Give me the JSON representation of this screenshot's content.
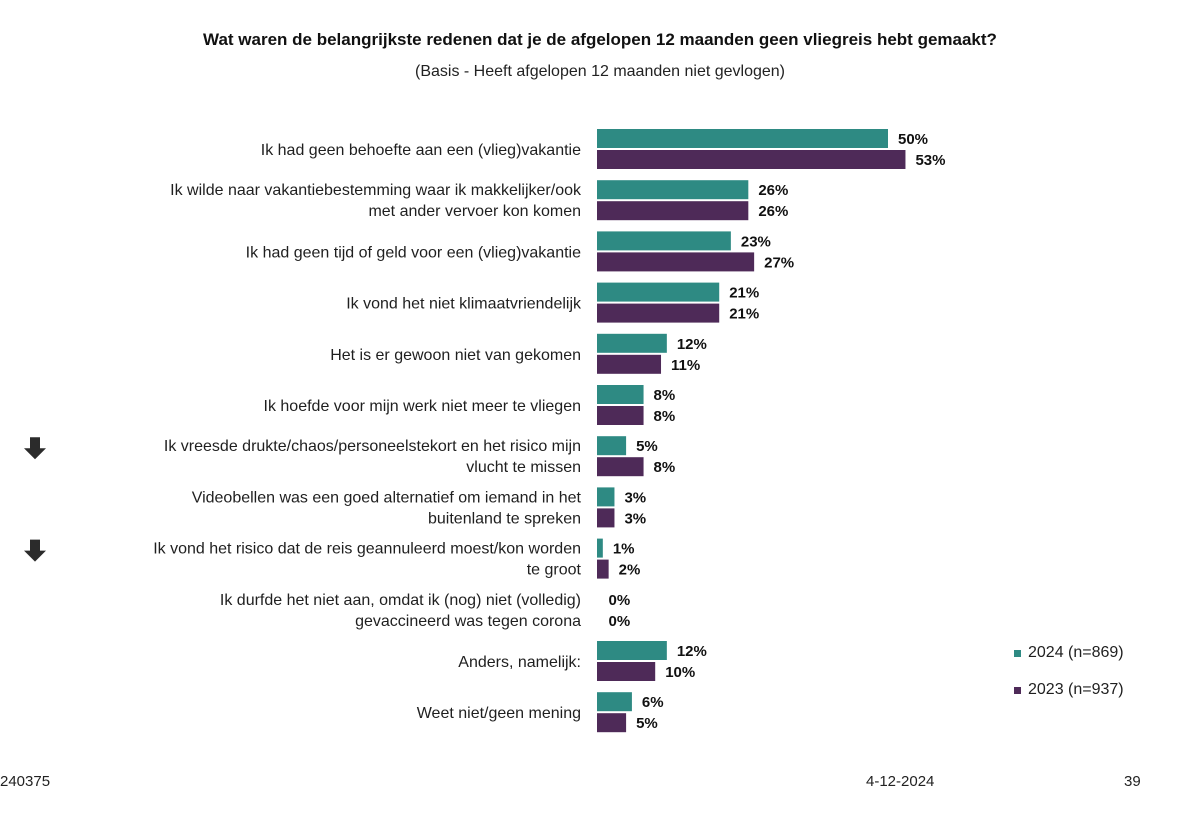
{
  "chart_data": {
    "type": "bar",
    "orientation": "horizontal",
    "title": "Wat waren de belangrijkste redenen dat je de afgelopen 12 maanden geen vliegreis hebt gemaakt?",
    "subtitle": "(Basis - Heeft afgelopen 12 maanden niet gevlogen)",
    "unit": "%",
    "xlim": [
      0,
      100
    ],
    "legend_position": "right",
    "categories": [
      [
        "Ik had geen behoefte aan een (vlieg)vakantie"
      ],
      [
        "Ik wilde naar vakantiebestemming waar ik makkelijker/ook",
        "met ander vervoer kon komen"
      ],
      [
        "Ik had geen tijd of geld voor een (vlieg)vakantie"
      ],
      [
        "Ik vond het niet klimaatvriendelijk"
      ],
      [
        "Het is er gewoon niet van gekomen"
      ],
      [
        "Ik hoefde voor mijn werk niet meer te vliegen"
      ],
      [
        "Ik vreesde drukte/chaos/personeelstekort en het risico mijn",
        "vlucht te missen"
      ],
      [
        "Videobellen was een goed alternatief om iemand in het",
        "buitenland te spreken"
      ],
      [
        "Ik vond het risico dat de reis geannuleerd moest/kon worden",
        "te groot"
      ],
      [
        "Ik durfde het niet aan, omdat ik (nog) niet (volledig)",
        "gevaccineerd was tegen corona"
      ],
      [
        "Anders, namelijk:"
      ],
      [
        "Weet niet/geen mening"
      ]
    ],
    "down_arrow_marked": [
      false,
      false,
      false,
      false,
      false,
      false,
      true,
      false,
      true,
      false,
      false,
      false
    ],
    "series": [
      {
        "name": "2024 (n=869)",
        "color": "#2e8a83",
        "values": [
          50,
          26,
          23,
          21,
          12,
          8,
          5,
          3,
          1,
          0,
          12,
          6
        ]
      },
      {
        "name": "2023 (n=937)",
        "color": "#4e2a58",
        "values": [
          53,
          26,
          27,
          21,
          11,
          8,
          8,
          3,
          2,
          0,
          10,
          5
        ]
      }
    ]
  },
  "footer": {
    "left": "240375",
    "date": "4-12-2024",
    "page": "39"
  }
}
